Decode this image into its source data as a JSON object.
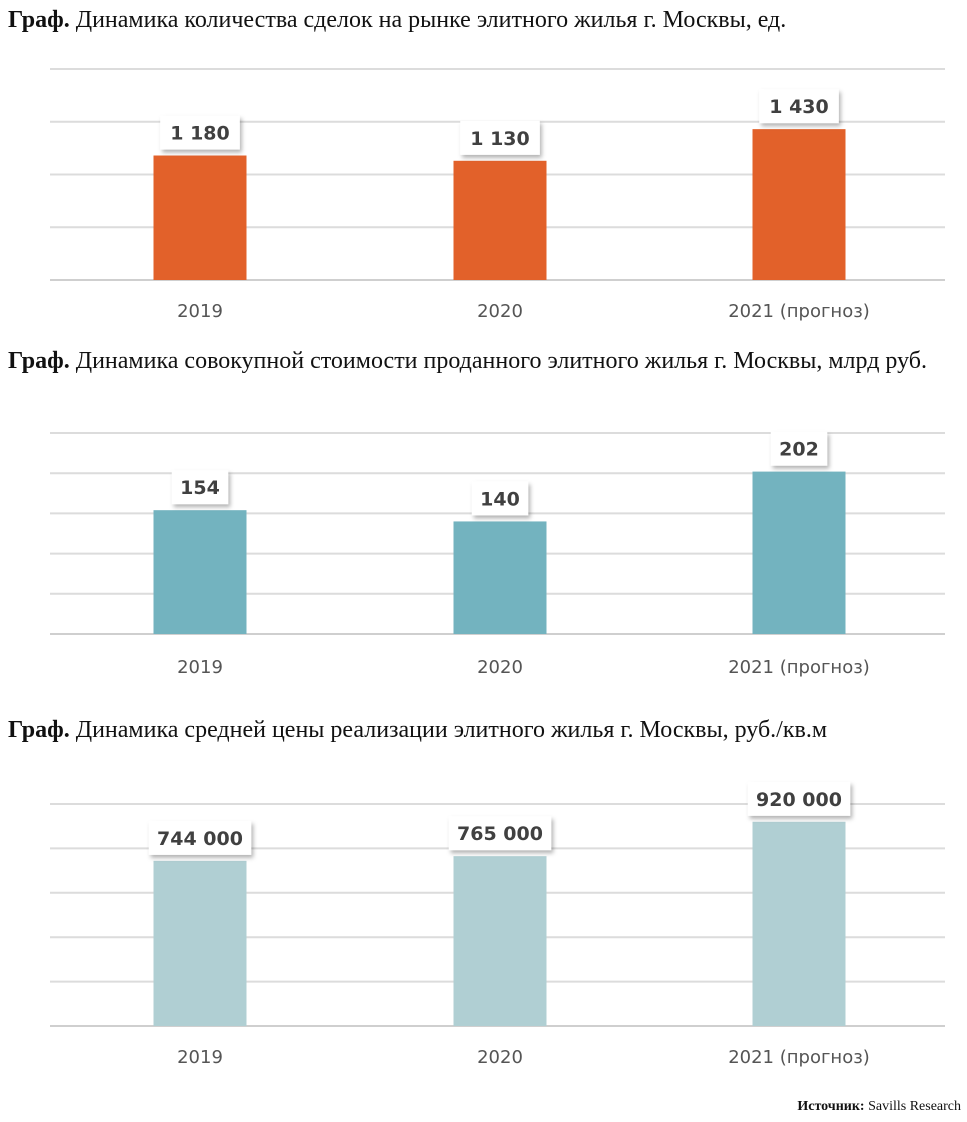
{
  "chart_data": [
    {
      "type": "bar",
      "title_prefix": "Граф.",
      "title": "Динамика количества сделок на рынке элитного жилья г. Москвы, ед.",
      "categories": [
        "2019",
        "2020",
        "2021 (прогноз)"
      ],
      "values": [
        1180,
        1130,
        1430
      ],
      "data_labels": [
        "1 180",
        "1 130",
        "1 430"
      ],
      "ylim": [
        0,
        2000
      ],
      "grid_step": 500,
      "color": "#E2612A",
      "xlabel": "",
      "ylabel": ""
    },
    {
      "type": "bar",
      "title_prefix": "Граф.",
      "title": "Динамика совокупной стоимости проданного элитного жилья г. Москвы, млрд руб.",
      "categories": [
        "2019",
        "2020",
        "2021 (прогноз)"
      ],
      "values": [
        154,
        140,
        202
      ],
      "data_labels": [
        "154",
        "140",
        "202"
      ],
      "ylim": [
        0,
        250
      ],
      "grid_step": 50,
      "color": "#73B3BF",
      "xlabel": "",
      "ylabel": ""
    },
    {
      "type": "bar",
      "title_prefix": "Граф.",
      "title": "Динамика средней цены реализации элитного жилья г. Москвы, руб./кв.м",
      "categories": [
        "2019",
        "2020",
        "2021 (прогноз)"
      ],
      "values": [
        744000,
        765000,
        920000
      ],
      "data_labels": [
        "744 000",
        "765 000",
        "920 000"
      ],
      "ylim": [
        0,
        1000000
      ],
      "grid_step": 200000,
      "color": "#B0CFD3",
      "xlabel": "",
      "ylabel": ""
    }
  ],
  "source": {
    "label": "Источник:",
    "text": "Savills Research"
  }
}
